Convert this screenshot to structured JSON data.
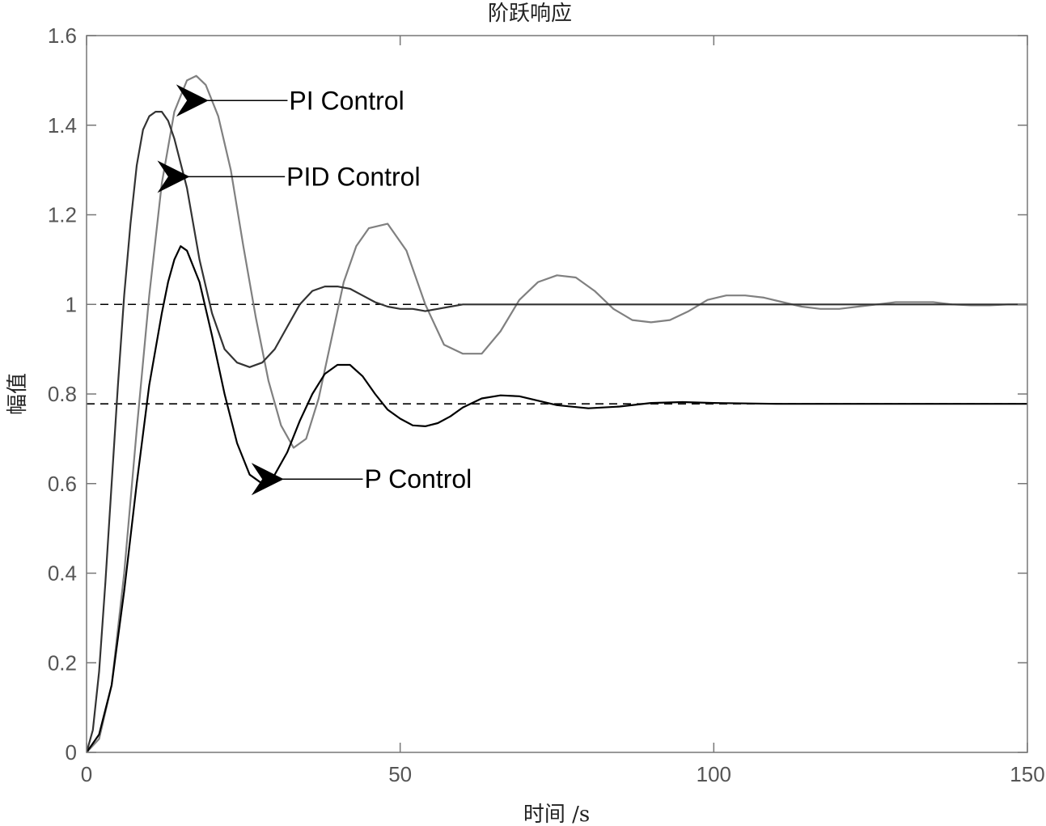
{
  "chart_data": {
    "type": "line",
    "title": "阶跃响应",
    "xlabel": "时间 /s",
    "ylabel": "幅值",
    "xlim": [
      0,
      150
    ],
    "ylim": [
      0,
      1.6
    ],
    "xticks": [
      0,
      50,
      100,
      150
    ],
    "xtick_labels": [
      "0",
      "50",
      "100",
      "150"
    ],
    "yticks": [
      0,
      0.2,
      0.4,
      0.6,
      0.8,
      1.0,
      1.2,
      1.4,
      1.6
    ],
    "ytick_labels": [
      "0",
      "0.2",
      "0.4",
      "0.6",
      "0.8",
      "1",
      "1.2",
      "1.4",
      "1.6"
    ],
    "grid": false,
    "colors": {
      "pi": "#808080",
      "pid": "#333333",
      "p": "#000000",
      "reference": "#000000"
    },
    "series": [
      {
        "key": "pi",
        "x": [
          0,
          2,
          4,
          6,
          8,
          10,
          12,
          14,
          16,
          17.5,
          19,
          21,
          23,
          25,
          27,
          29,
          31,
          33,
          35,
          37,
          39,
          41,
          43,
          45,
          48,
          51,
          54,
          57,
          60,
          63,
          66,
          69,
          72,
          75,
          78,
          81,
          84,
          87,
          90,
          93,
          96,
          99,
          102,
          105,
          108,
          111,
          114,
          117,
          120,
          123,
          126,
          129,
          132,
          135,
          138,
          141,
          144,
          147,
          150
        ],
        "y": [
          0,
          0.03,
          0.15,
          0.4,
          0.72,
          1.02,
          1.27,
          1.43,
          1.5,
          1.51,
          1.49,
          1.42,
          1.3,
          1.13,
          0.97,
          0.83,
          0.73,
          0.68,
          0.7,
          0.79,
          0.92,
          1.05,
          1.13,
          1.17,
          1.18,
          1.12,
          1.0,
          0.91,
          0.89,
          0.89,
          0.94,
          1.01,
          1.05,
          1.065,
          1.06,
          1.03,
          0.99,
          0.965,
          0.96,
          0.965,
          0.985,
          1.01,
          1.02,
          1.02,
          1.015,
          1.005,
          0.995,
          0.99,
          0.99,
          0.995,
          1.0,
          1.005,
          1.005,
          1.005,
          1.0,
          0.998,
          0.998,
          1.0,
          1.0
        ]
      },
      {
        "key": "pid",
        "x": [
          0,
          1,
          2,
          3,
          4,
          5,
          6,
          7,
          8,
          9,
          10,
          11,
          12,
          13,
          14,
          16,
          18,
          20,
          22,
          24,
          26,
          28,
          30,
          32,
          34,
          36,
          38,
          40,
          42,
          44,
          46,
          48,
          50,
          52,
          54,
          56,
          58,
          60,
          63,
          66,
          70,
          80,
          90,
          100,
          110,
          120,
          130,
          140,
          150
        ],
        "y": [
          0,
          0.05,
          0.18,
          0.38,
          0.6,
          0.82,
          1.02,
          1.18,
          1.31,
          1.39,
          1.42,
          1.43,
          1.43,
          1.41,
          1.37,
          1.26,
          1.1,
          0.98,
          0.9,
          0.87,
          0.86,
          0.87,
          0.9,
          0.95,
          1.0,
          1.03,
          1.04,
          1.04,
          1.035,
          1.02,
          1.005,
          0.995,
          0.99,
          0.99,
          0.985,
          0.99,
          0.995,
          1.0,
          1.0,
          1.0,
          1.0,
          1.0,
          1.0,
          1.0,
          1.0,
          1.0,
          1.0,
          1.0,
          1.0
        ]
      },
      {
        "key": "p",
        "x": [
          0,
          2,
          4,
          6,
          8,
          10,
          12,
          13,
          14,
          15,
          16,
          18,
          20,
          22,
          24,
          26,
          28,
          30,
          32,
          34,
          36,
          38,
          40,
          42,
          44,
          46,
          48,
          50,
          52,
          54,
          56,
          58,
          60,
          63,
          66,
          69,
          72,
          75,
          80,
          85,
          90,
          95,
          100,
          110,
          120,
          130,
          140,
          150
        ],
        "y": [
          0,
          0.04,
          0.15,
          0.36,
          0.6,
          0.82,
          0.98,
          1.05,
          1.1,
          1.13,
          1.12,
          1.05,
          0.93,
          0.8,
          0.69,
          0.62,
          0.6,
          0.62,
          0.67,
          0.74,
          0.8,
          0.845,
          0.865,
          0.865,
          0.84,
          0.8,
          0.765,
          0.745,
          0.73,
          0.728,
          0.735,
          0.75,
          0.77,
          0.79,
          0.797,
          0.795,
          0.785,
          0.775,
          0.768,
          0.772,
          0.78,
          0.782,
          0.78,
          0.778,
          0.778,
          0.778,
          0.778,
          0.778
        ]
      }
    ],
    "reference_lines": [
      1.0,
      0.778
    ],
    "annotations": [
      {
        "text": "PI Control",
        "x": 18.5,
        "y": 1.455
      },
      {
        "text": "PID Control",
        "x": 15.5,
        "y": 1.285
      },
      {
        "text": "P Control",
        "x": 30.5,
        "y": 0.61
      }
    ]
  }
}
